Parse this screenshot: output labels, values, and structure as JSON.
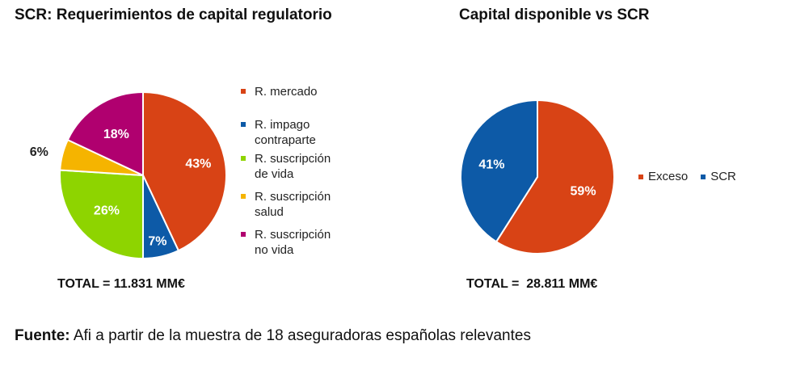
{
  "chart_data": [
    {
      "type": "pie",
      "title": "SCR: Requerimientos de capital regulatorio",
      "categories": [
        "R. mercado",
        "R. impago contraparte",
        "R. suscripción de vida",
        "R. suscripción salud",
        "R. suscripción no vida"
      ],
      "values": [
        43,
        7,
        26,
        6,
        18
      ],
      "labels": [
        "43%",
        "7%",
        "26%",
        "6%",
        "18%"
      ],
      "colors": [
        "#d84315",
        "#0d5aa7",
        "#8ed400",
        "#f5b400",
        "#b0006f"
      ],
      "legend": {
        "placement": "right",
        "lines": [
          [
            "R. mercado"
          ],
          [
            "R. impago",
            "contraparte"
          ],
          [
            "R. suscripción",
            "de vida"
          ],
          [
            "R. suscripción",
            "salud"
          ],
          [
            "R. suscripción",
            "no vida"
          ]
        ]
      },
      "total": "TOTAL = 11.831 MM€"
    },
    {
      "type": "pie",
      "title": "Capital disponible vs SCR",
      "categories": [
        "Exceso",
        "SCR"
      ],
      "values": [
        59,
        41
      ],
      "labels": [
        "59%",
        "41%"
      ],
      "colors": [
        "#d84315",
        "#0d5aa7"
      ],
      "legend": {
        "placement": "right"
      },
      "total": "TOTAL =  28.811 MM€"
    }
  ],
  "source": {
    "label": "Fuente:",
    "text": " Afi a partir de la muestra de 18 aseguradoras españolas relevantes"
  }
}
